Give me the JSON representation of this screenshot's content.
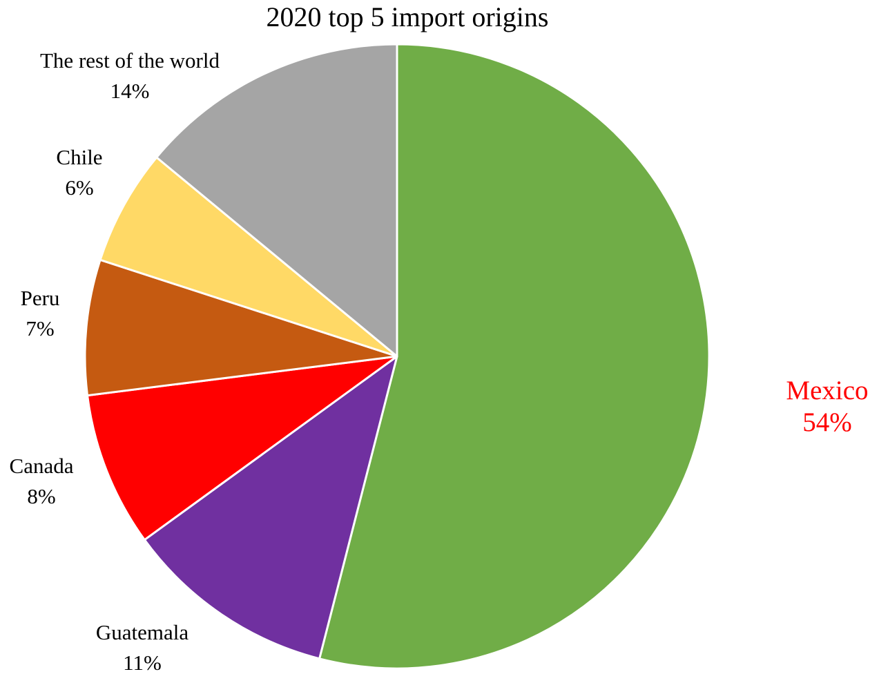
{
  "chart_data": {
    "type": "pie",
    "title": "2020 top 5 import origins",
    "start_angle_deg": 0,
    "direction": "clockwise",
    "slices": [
      {
        "label": "Mexico",
        "value": 54,
        "value_label": "54%",
        "color": "#70AD47",
        "label_color": "#FF0000"
      },
      {
        "label": "Guatemala",
        "value": 11,
        "value_label": "11%",
        "color": "#7030A0",
        "label_color": "#000000"
      },
      {
        "label": "Canada",
        "value": 8,
        "value_label": "8%",
        "color": "#FF0000",
        "label_color": "#000000"
      },
      {
        "label": "Peru",
        "value": 7,
        "value_label": "7%",
        "color": "#C55A11",
        "label_color": "#000000"
      },
      {
        "label": "Chile",
        "value": 6,
        "value_label": "6%",
        "color": "#FFD966",
        "label_color": "#000000"
      },
      {
        "label": "The rest of the world",
        "value": 14,
        "value_label": "14%",
        "color": "#A5A5A5",
        "label_color": "#000000"
      }
    ]
  }
}
